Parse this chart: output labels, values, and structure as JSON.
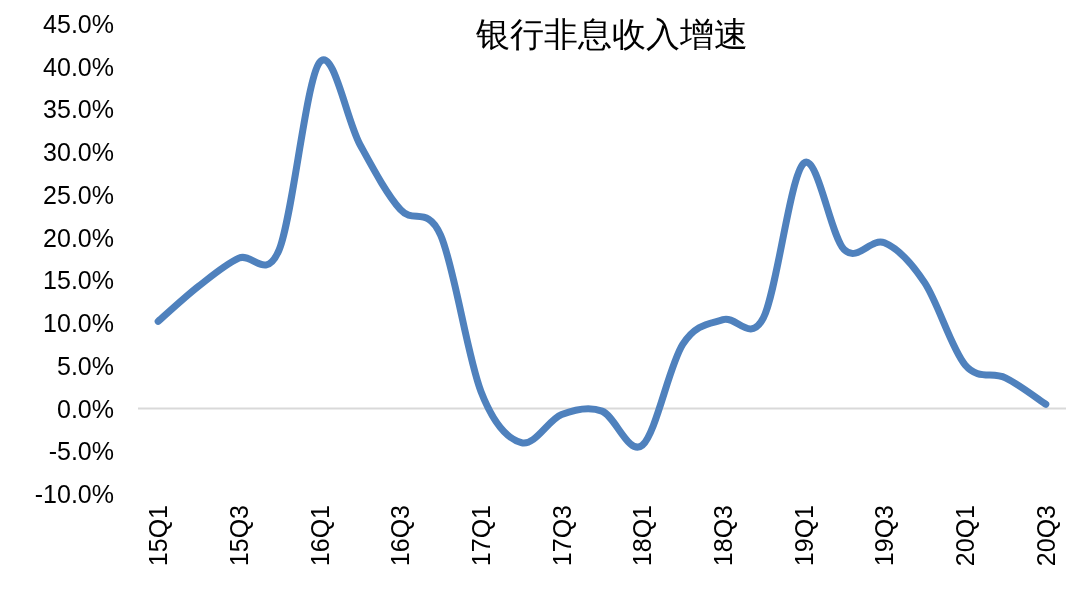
{
  "chart_data": {
    "type": "line",
    "title": "银行非息收入增速",
    "categories": [
      "15Q1",
      null,
      "15Q3",
      null,
      "16Q1",
      null,
      "16Q3",
      null,
      "17Q1",
      null,
      "17Q3",
      null,
      "18Q1",
      null,
      "18Q3",
      null,
      "19Q1",
      null,
      "19Q3",
      null,
      "20Q1",
      null,
      "20Q3"
    ],
    "series": [
      {
        "color": "#4f81bd",
        "values": [
          10.2,
          14.3,
          17.6,
          18.6,
          40.5,
          30.9,
          23.3,
          20.3,
          2.0,
          -4.0,
          -0.7,
          -0.3,
          -4.3,
          7.5,
          10.4,
          10.6,
          28.7,
          18.6,
          19.4,
          14.7,
          5.1,
          3.6,
          0.5
        ]
      }
    ],
    "ylim": [
      -10,
      45
    ],
    "yticks": [
      {
        "value": -10,
        "label": "-10.0%"
      },
      {
        "value": -5,
        "label": "-5.0%"
      },
      {
        "value": 0,
        "label": "0.0%"
      },
      {
        "value": 5,
        "label": "5.0%"
      },
      {
        "value": 10,
        "label": "10.0%"
      },
      {
        "value": 15,
        "label": "15.0%"
      },
      {
        "value": 20,
        "label": "20.0%"
      },
      {
        "value": 25,
        "label": "25.0%"
      },
      {
        "value": 30,
        "label": "30.0%"
      },
      {
        "value": 35,
        "label": "35.0%"
      },
      {
        "value": 40,
        "label": "40.0%"
      },
      {
        "value": 45,
        "label": "45.0%"
      }
    ],
    "ylabel": null
  }
}
